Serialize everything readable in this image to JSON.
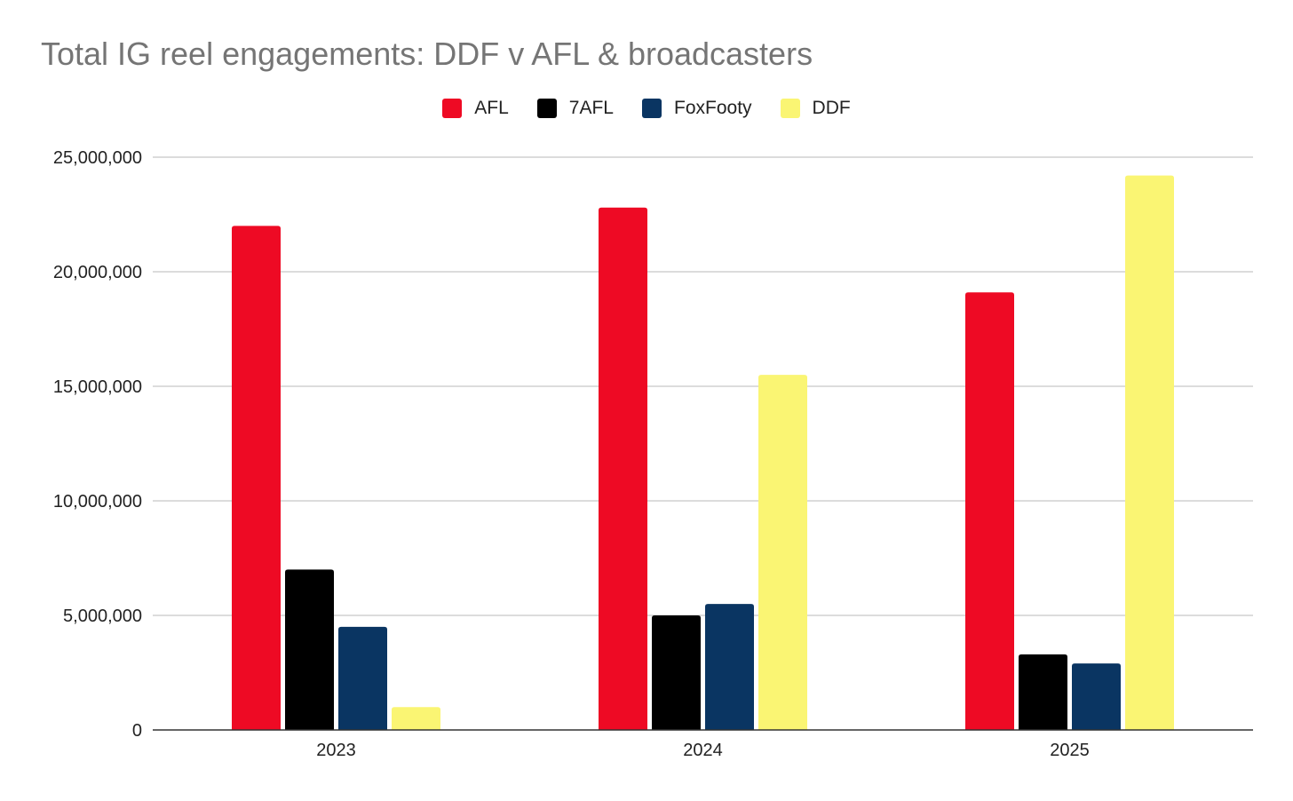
{
  "chart_data": {
    "type": "bar",
    "title": "Total IG reel engagements: DDF v AFL & broadcasters",
    "xlabel": "",
    "ylabel": "",
    "categories": [
      "2023",
      "2024",
      "2025"
    ],
    "ylim": [
      0,
      25000000
    ],
    "yticks": [
      0,
      5000000,
      10000000,
      15000000,
      20000000,
      25000000
    ],
    "ytick_labels": [
      "0",
      "5,000,000",
      "10,000,000",
      "15,000,000",
      "20,000,000",
      "25,000,000"
    ],
    "grid": true,
    "legend_position": "top-center",
    "series": [
      {
        "name": "AFL",
        "color": "#ee0a24",
        "values": [
          22000000,
          22800000,
          19100000
        ]
      },
      {
        "name": "7AFL",
        "color": "#000000",
        "values": [
          7000000,
          5000000,
          3300000
        ]
      },
      {
        "name": "FoxFooty",
        "color": "#0a3562",
        "values": [
          4500000,
          5500000,
          2900000
        ]
      },
      {
        "name": "DDF",
        "color": "#faf573",
        "values": [
          1000000,
          15500000,
          24200000
        ]
      }
    ]
  }
}
